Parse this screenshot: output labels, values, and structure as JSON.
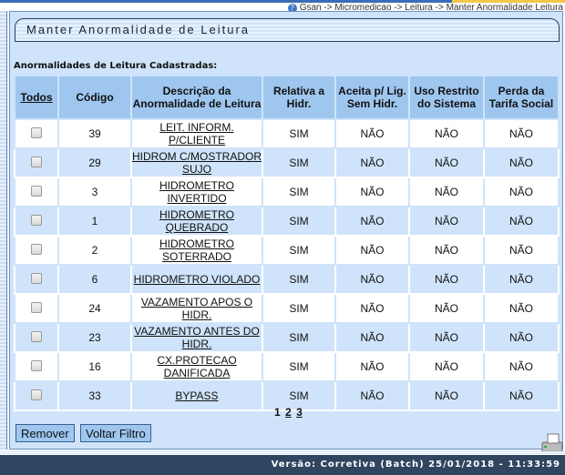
{
  "breadcrumb": "Gsan -> Micromedicao -> Leitura -> Manter Anormalidade Leitura",
  "title": "Manter Anormalidade de Leitura",
  "section_heading": "Anormalidades de Leitura Cadastradas:",
  "columns": [
    "Todos",
    "Código",
    "Descrição da Anormalidade de Leitura",
    "Relativa a Hidr.",
    "Aceita p/ Lig. Sem Hidr.",
    "Uso Restrito do Sistema",
    "Perda da Tarifa Social"
  ],
  "rows": [
    {
      "codigo": "39",
      "descricao": "LEIT. INFORM. P/CLIENTE",
      "relativa": "SIM",
      "aceita": "NÃO",
      "uso": "NÃO",
      "perda": "NÃO"
    },
    {
      "codigo": "29",
      "descricao": "HIDROM C/MOSTRADOR SUJO",
      "relativa": "SIM",
      "aceita": "NÃO",
      "uso": "NÃO",
      "perda": "NÃO"
    },
    {
      "codigo": "3",
      "descricao": "HIDROMETRO INVERTIDO",
      "relativa": "SIM",
      "aceita": "NÃO",
      "uso": "NÃO",
      "perda": "NÃO"
    },
    {
      "codigo": "1",
      "descricao": "HIDROMETRO QUEBRADO",
      "relativa": "SIM",
      "aceita": "NÃO",
      "uso": "NÃO",
      "perda": "NÃO"
    },
    {
      "codigo": "2",
      "descricao": "HIDROMETRO SOTERRADO",
      "relativa": "SIM",
      "aceita": "NÃO",
      "uso": "NÃO",
      "perda": "NÃO"
    },
    {
      "codigo": "6",
      "descricao": "HIDROMETRO VIOLADO",
      "relativa": "SIM",
      "aceita": "NÃO",
      "uso": "NÃO",
      "perda": "NÃO"
    },
    {
      "codigo": "24",
      "descricao": "VAZAMENTO APOS O HIDR.",
      "relativa": "SIM",
      "aceita": "NÃO",
      "uso": "NÃO",
      "perda": "NÃO"
    },
    {
      "codigo": "23",
      "descricao": "VAZAMENTO ANTES DO HIDR.",
      "relativa": "SIM",
      "aceita": "NÃO",
      "uso": "NÃO",
      "perda": "NÃO"
    },
    {
      "codigo": "16",
      "descricao": "CX.PROTECAO DANIFICADA",
      "relativa": "SIM",
      "aceita": "NÃO",
      "uso": "NÃO",
      "perda": "NÃO"
    },
    {
      "codigo": "33",
      "descricao": "BYPASS",
      "relativa": "SIM",
      "aceita": "NÃO",
      "uso": "NÃO",
      "perda": "NÃO"
    }
  ],
  "pagination": {
    "current": "1",
    "pages": [
      "2",
      "3"
    ]
  },
  "buttons": {
    "remove": "Remover",
    "back": "Voltar Filtro"
  },
  "footer": "Versão: Corretiva (Batch) 25/01/2018 - 11:33:59",
  "icons": {
    "help": "help-icon",
    "print": "printer-icon"
  }
}
